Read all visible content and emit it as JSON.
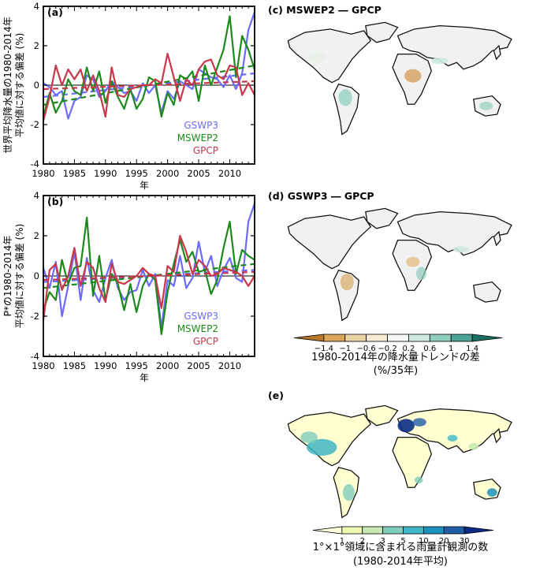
{
  "chart_data": [
    {
      "panel": "(a)",
      "type": "line",
      "ylabel": "世界平均降水量の1980-2014年\n平均値に対する偏差 (%)",
      "xlabel": "年",
      "xlim": [
        1980,
        2014
      ],
      "ylim": [
        -4,
        4
      ],
      "xticks": [
        1980,
        1985,
        1990,
        1995,
        2000,
        2005,
        2010
      ],
      "yticks": [
        -4,
        -2,
        0,
        2,
        4
      ],
      "legend": [
        "GSWP3",
        "MSWEP2",
        "GPCP"
      ],
      "series": [
        {
          "name": "GSWP3",
          "color": "#6b6bff",
          "values": [
            0.1,
            -0.1,
            -0.5,
            -0.3,
            -1.7,
            -0.8,
            -0.6,
            0.5,
            0.3,
            -0.6,
            -0.3,
            0.2,
            -0.1,
            -0.4,
            -0.3,
            -0.8,
            0.1,
            -0.4,
            0.0,
            -1.4,
            -0.3,
            -0.7,
            0.2,
            0.0,
            -0.2,
            0.8,
            0.6,
            0.4,
            0.3,
            -0.1,
            0.5,
            -0.2,
            0.6,
            2.8,
            3.7
          ],
          "trend": [
            -0.6,
            0.6
          ]
        },
        {
          "name": "MSWEP2",
          "color": "#1b8a1b",
          "values": [
            -1.6,
            -0.4,
            -1.4,
            -0.8,
            0.3,
            -0.3,
            -0.5,
            0.9,
            -0.3,
            0.7,
            -0.9,
            0.2,
            -0.6,
            -1.2,
            -0.2,
            -1.2,
            -0.7,
            0.4,
            0.2,
            -1.6,
            -0.4,
            -1.0,
            0.5,
            0.3,
            0.7,
            -0.8,
            1.0,
            0.0,
            0.9,
            1.8,
            3.5,
            0.4,
            2.5,
            1.8,
            0.8
          ],
          "trend": [
            -1.0,
            1.0
          ]
        },
        {
          "name": "GPCP",
          "color": "#c8374a",
          "values": [
            -1.8,
            -0.6,
            1.0,
            0.0,
            0.8,
            0.3,
            0.8,
            -0.3,
            0.5,
            -0.3,
            -1.6,
            0.9,
            -0.5,
            -0.6,
            -0.2,
            -0.1,
            0.0,
            0.0,
            0.3,
            0.1,
            1.6,
            0.4,
            -0.8,
            0.3,
            0.0,
            0.8,
            1.2,
            1.3,
            0.5,
            0.3,
            1.0,
            0.9,
            -0.5,
            0.1,
            -0.5
          ],
          "trend": [
            -0.2,
            0.2
          ]
        }
      ]
    },
    {
      "panel": "(b)",
      "type": "line",
      "ylabel": "P*の1980-2014年\n平均値に対する偏差 (%)",
      "xlabel": "年",
      "xlim": [
        1980,
        2014
      ],
      "ylim": [
        -4,
        4
      ],
      "xticks": [
        1980,
        1985,
        1990,
        1995,
        2000,
        2005,
        2010
      ],
      "yticks": [
        -4,
        -2,
        0,
        2,
        4
      ],
      "legend": [
        "GSWP3",
        "MSWEP2",
        "GPCP"
      ],
      "series": [
        {
          "name": "GSWP3",
          "color": "#6b6bff",
          "values": [
            0.4,
            -0.6,
            0.7,
            -2.0,
            -0.5,
            1.2,
            -1.2,
            0.9,
            -0.7,
            -1.3,
            -0.1,
            0.8,
            -0.6,
            -1.2,
            -0.8,
            -0.7,
            0.3,
            -0.5,
            0.1,
            -2.6,
            -0.2,
            -0.5,
            1.0,
            -0.6,
            -0.1,
            1.7,
            0.2,
            1.0,
            -0.5,
            0.3,
            0.9,
            -0.1,
            -0.3,
            2.7,
            3.6
          ],
          "trend": [
            -0.3,
            0.3
          ]
        },
        {
          "name": "MSWEP2",
          "color": "#1b8a1b",
          "values": [
            -1.7,
            -0.8,
            -1.2,
            0.8,
            -0.4,
            0.4,
            0.5,
            2.9,
            -1.0,
            1.0,
            -1.2,
            0.1,
            -0.4,
            -1.7,
            -0.4,
            -1.8,
            -0.5,
            0.1,
            -0.2,
            -2.9,
            -0.8,
            0.6,
            1.8,
            0.7,
            1.2,
            0.2,
            0.3,
            -0.9,
            -0.2,
            1.4,
            2.7,
            0.1,
            1.3,
            1.0,
            0.8
          ],
          "trend": [
            -0.6,
            0.6
          ]
        },
        {
          "name": "GPCP",
          "color": "#c8374a",
          "values": [
            -2.2,
            0.3,
            0.6,
            -0.7,
            0.0,
            1.4,
            -0.5,
            0.7,
            0.4,
            -0.6,
            -1.3,
            0.6,
            -0.3,
            -0.4,
            -0.2,
            0.0,
            0.4,
            0.1,
            0.0,
            -1.6,
            0.5,
            0.2,
            2.0,
            1.2,
            0.1,
            0.8,
            0.5,
            0.0,
            0.1,
            0.4,
            0.3,
            0.2,
            0.0,
            -0.5,
            0.0
          ],
          "trend": [
            -0.2,
            0.2
          ]
        }
      ]
    },
    {
      "panel": "(c)",
      "type": "heatmap",
      "title": "(c) MSWEP2 ― GPCP",
      "description_of_field": "global map of precipitation trend difference"
    },
    {
      "panel": "(d)",
      "type": "heatmap",
      "title": "(d) GSWP3 ― GPCP",
      "colorbar": {
        "ticks": [
          "−1.4",
          "−1",
          "−0.6",
          "−0.2",
          "0.2",
          "0.6",
          "1",
          "1.4"
        ],
        "colors": [
          "#b8772a",
          "#d9a65c",
          "#ecd3a5",
          "#f6ebd3",
          "#f6f6f6",
          "#cfe9e1",
          "#8fcdbd",
          "#4aa394",
          "#1c6e62"
        ],
        "label_line1": "1980-2014年の降水量トレンドの差",
        "label_line2": "(%/35年)"
      }
    },
    {
      "panel": "(e)",
      "type": "heatmap",
      "title": "(e)",
      "colorbar": {
        "ticks": [
          "1",
          "2",
          "3",
          "5",
          "10",
          "20",
          "30"
        ],
        "colors": [
          "#ffffd9",
          "#edf8b1",
          "#c7e9b4",
          "#7fcdbb",
          "#41b6c4",
          "#1d91c0",
          "#225ea8",
          "#0c2c84"
        ],
        "label_line1": "1°×1°領域に含まれる雨量計観測の数",
        "label_line2": "(1980-2014年平均)"
      }
    }
  ]
}
